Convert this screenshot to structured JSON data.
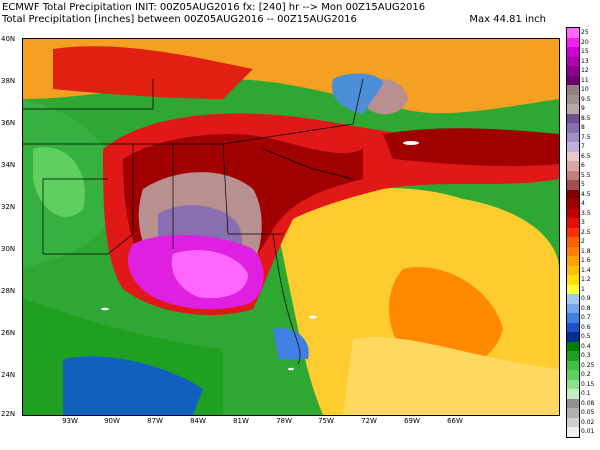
{
  "header": {
    "line1": "ECMWF Total Precipitation INIT: 00Z05AUG2016 fx: [240] hr --> Mon 00Z15AUG2016",
    "line2": "Total Precipitation [inches] between 00Z05AUG2016 -- 00Z15AUG2016",
    "max_label": "Max 44.81 inch"
  },
  "map": {
    "lat_labels": [
      "40N",
      "38N",
      "36N",
      "34N",
      "32N",
      "30N",
      "28N",
      "26N",
      "24N",
      "22N"
    ],
    "lon_labels": [
      "93W",
      "90W",
      "87W",
      "84W",
      "81W",
      "78W",
      "75W",
      "72W",
      "69W",
      "66W"
    ],
    "region": "US Southeast, Gulf of Mexico, Florida, western Atlantic"
  },
  "legend": {
    "units": "inches",
    "levels": [
      {
        "label": "25",
        "color": "#ff66ff"
      },
      {
        "label": "20",
        "color": "#f020f0"
      },
      {
        "label": "15",
        "color": "#d000d0"
      },
      {
        "label": "13",
        "color": "#b000b0"
      },
      {
        "label": "12",
        "color": "#900090"
      },
      {
        "label": "11",
        "color": "#700070"
      },
      {
        "label": "10",
        "color": "#908080"
      },
      {
        "label": "9.5",
        "color": "#a09090"
      },
      {
        "label": "9",
        "color": "#b8a8a8"
      },
      {
        "label": "8.5",
        "color": "#705090"
      },
      {
        "label": "8",
        "color": "#8870b0"
      },
      {
        "label": "7.5",
        "color": "#a090c8"
      },
      {
        "label": "7",
        "color": "#c0b0e0"
      },
      {
        "label": "6.5",
        "color": "#e8c8c8"
      },
      {
        "label": "6",
        "color": "#d8a8a8"
      },
      {
        "label": "5.5",
        "color": "#c08080"
      },
      {
        "label": "5",
        "color": "#a05050"
      },
      {
        "label": "4.5",
        "color": "#800000"
      },
      {
        "label": "4",
        "color": "#a00000"
      },
      {
        "label": "3.5",
        "color": "#c00000"
      },
      {
        "label": "3",
        "color": "#e01010"
      },
      {
        "label": "2.5",
        "color": "#ff3000"
      },
      {
        "label": "2",
        "color": "#ff6000"
      },
      {
        "label": "1.8",
        "color": "#ff8000"
      },
      {
        "label": "1.6",
        "color": "#ffa000"
      },
      {
        "label": "1.4",
        "color": "#ffc000"
      },
      {
        "label": "1.2",
        "color": "#ffe000"
      },
      {
        "label": "1",
        "color": "#ffff40"
      },
      {
        "label": "0.9",
        "color": "#a0c8f0"
      },
      {
        "label": "0.8",
        "color": "#70a8e8"
      },
      {
        "label": "0.7",
        "color": "#4080e0"
      },
      {
        "label": "0.6",
        "color": "#2050c8"
      },
      {
        "label": "0.5",
        "color": "#003090"
      },
      {
        "label": "0.4",
        "color": "#008000"
      },
      {
        "label": "0.3",
        "color": "#20a020"
      },
      {
        "label": "0.25",
        "color": "#40c040"
      },
      {
        "label": "0.2",
        "color": "#60d060"
      },
      {
        "label": "0.15",
        "color": "#90e090"
      },
      {
        "label": "0.1",
        "color": "#c0f0c0"
      },
      {
        "label": "0.08",
        "color": "#909090"
      },
      {
        "label": "0.05",
        "color": "#b0b0b0"
      },
      {
        "label": "0.02",
        "color": "#d0d0d0"
      },
      {
        "label": "0.01",
        "color": "#f0f0f0"
      }
    ]
  }
}
